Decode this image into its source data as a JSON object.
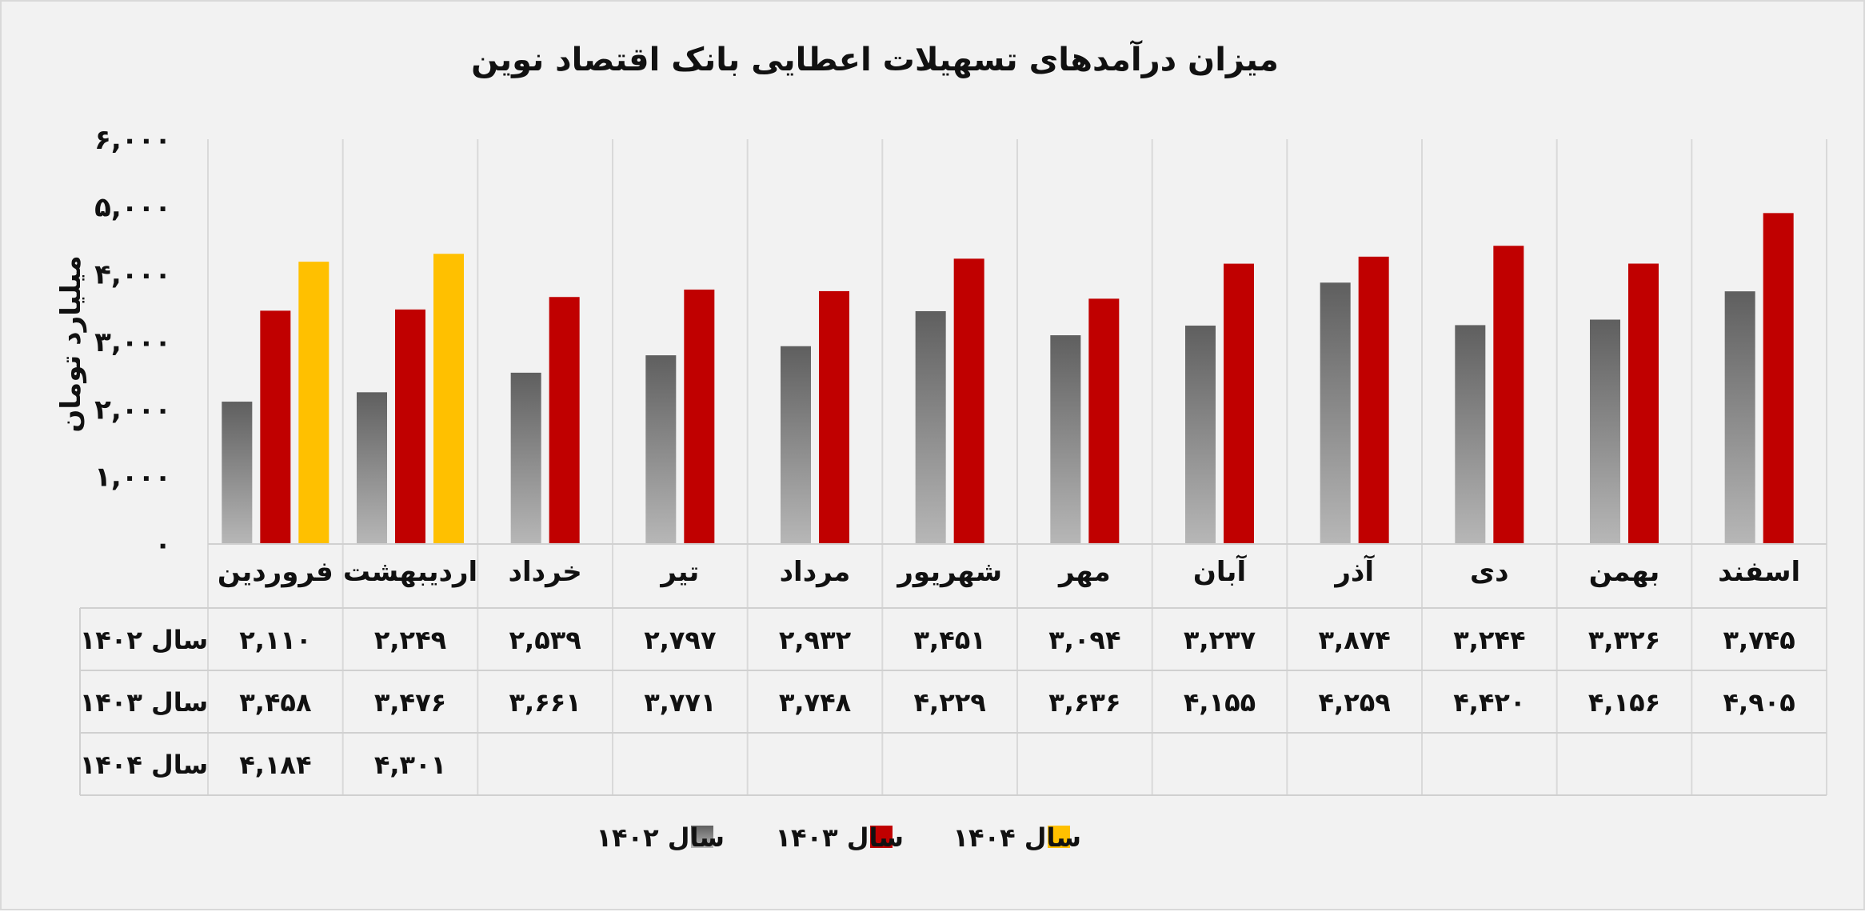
{
  "chart_data": {
    "type": "bar",
    "title": "میزان درآمدهای تسهیلات اعطایی بانک اقتصاد نوین",
    "ylabel": "میلیارد تومان",
    "ylim": [
      0,
      6000
    ],
    "yticks": [
      0,
      1000,
      2000,
      3000,
      4000,
      5000,
      6000
    ],
    "ytick_labels": [
      "۰",
      "۱,۰۰۰",
      "۲,۰۰۰",
      "۳,۰۰۰",
      "۴,۰۰۰",
      "۵,۰۰۰",
      "۶,۰۰۰"
    ],
    "categories": [
      "فروردین",
      "اردیبهشت",
      "خرداد",
      "تیر",
      "مرداد",
      "شهریور",
      "مهر",
      "آبان",
      "آذر",
      "دی",
      "بهمن",
      "اسفند"
    ],
    "series": [
      {
        "name": "سال ۱۴۰۲",
        "color": "#7f7f7f",
        "values": [
          2110,
          2249,
          2539,
          2797,
          2932,
          3451,
          3094,
          3237,
          3874,
          3244,
          3326,
          3745
        ],
        "labels": [
          "۲,۱۱۰",
          "۲,۲۴۹",
          "۲,۵۳۹",
          "۲,۷۹۷",
          "۲,۹۳۲",
          "۳,۴۵۱",
          "۳,۰۹۴",
          "۳,۲۳۷",
          "۳,۸۷۴",
          "۳,۲۴۴",
          "۳,۳۲۶",
          "۳,۷۴۵"
        ]
      },
      {
        "name": "سال ۱۴۰۳",
        "color": "#c00000",
        "values": [
          3458,
          3476,
          3661,
          3771,
          3748,
          4229,
          3636,
          4155,
          4259,
          4420,
          4156,
          4905
        ],
        "labels": [
          "۳,۴۵۸",
          "۳,۴۷۶",
          "۳,۶۶۱",
          "۳,۷۷۱",
          "۳,۷۴۸",
          "۴,۲۲۹",
          "۳,۶۳۶",
          "۴,۱۵۵",
          "۴,۲۵۹",
          "۴,۴۲۰",
          "۴,۱۵۶",
          "۴,۹۰۵"
        ]
      },
      {
        "name": "سال ۱۴۰۴",
        "color": "#ffc000",
        "values": [
          4184,
          4301,
          null,
          null,
          null,
          null,
          null,
          null,
          null,
          null,
          null,
          null
        ],
        "labels": [
          "۴,۱۸۴",
          "۴,۳۰۱",
          "",
          "",
          "",
          "",
          "",
          "",
          "",
          "",
          "",
          ""
        ]
      }
    ],
    "grid": "vertical category separators",
    "legend_position": "bottom",
    "data_table": true
  }
}
